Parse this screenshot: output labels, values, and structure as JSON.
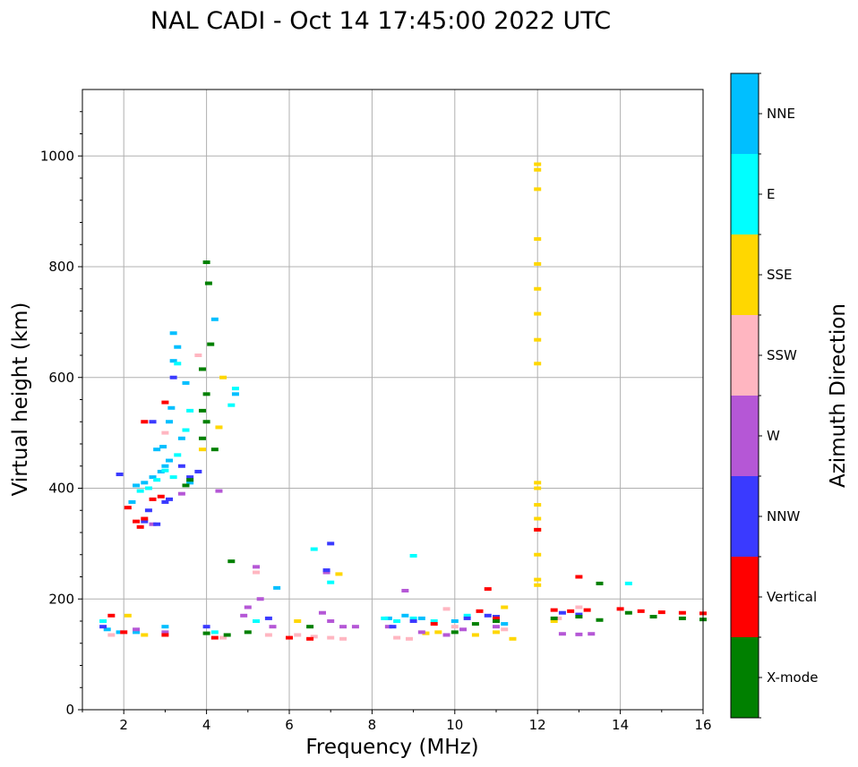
{
  "chart_data": {
    "type": "scatter",
    "title": "NAL CADI - Oct 14 17:45:00 2022 UTC",
    "xlabel": "Frequency (MHz)",
    "ylabel": "Virtual height (km)",
    "xlim": [
      1,
      16
    ],
    "ylim": [
      0,
      1120
    ],
    "grid": true,
    "xticks": [
      2,
      4,
      6,
      8,
      10,
      12,
      14,
      16
    ],
    "yticks": [
      0,
      200,
      400,
      600,
      800,
      1000
    ],
    "colorbar": {
      "label": "Azimuth Direction",
      "categories": [
        {
          "name": "X-mode",
          "color": "#008000"
        },
        {
          "name": "Vertical",
          "color": "#ff0000"
        },
        {
          "name": "NNW",
          "color": "#3a3aff"
        },
        {
          "name": "W",
          "color": "#b557d6"
        },
        {
          "name": "SSW",
          "color": "#ffb6c1"
        },
        {
          "name": "SSE",
          "color": "#ffd700"
        },
        {
          "name": "E",
          "color": "#00ffff"
        },
        {
          "name": "NNE",
          "color": "#00bfff"
        }
      ]
    },
    "series": [
      {
        "name": "NNE",
        "points": [
          [
            2.3,
            405
          ],
          [
            2.5,
            410
          ],
          [
            2.7,
            420
          ],
          [
            2.9,
            430
          ],
          [
            3.0,
            440
          ],
          [
            3.1,
            450
          ],
          [
            2.95,
            475
          ],
          [
            3.1,
            520
          ],
          [
            3.15,
            545
          ],
          [
            3.2,
            680
          ],
          [
            3.3,
            655
          ],
          [
            3.2,
            630
          ],
          [
            2.8,
            470
          ],
          [
            3.4,
            490
          ],
          [
            2.2,
            375
          ],
          [
            3.6,
            410
          ],
          [
            1.6,
            145
          ],
          [
            1.9,
            140
          ],
          [
            2.3,
            140
          ],
          [
            3.0,
            150
          ],
          [
            8.4,
            165
          ],
          [
            8.8,
            170
          ],
          [
            9.2,
            165
          ],
          [
            10.0,
            160
          ],
          [
            11.2,
            155
          ],
          [
            4.2,
            705
          ],
          [
            4.7,
            570
          ],
          [
            3.5,
            590
          ],
          [
            5.7,
            220
          ]
        ]
      },
      {
        "name": "E",
        "points": [
          [
            2.4,
            395
          ],
          [
            2.6,
            400
          ],
          [
            2.8,
            415
          ],
          [
            3.0,
            432
          ],
          [
            3.2,
            420
          ],
          [
            3.3,
            460
          ],
          [
            3.5,
            505
          ],
          [
            3.6,
            540
          ],
          [
            4.6,
            550
          ],
          [
            3.3,
            625
          ],
          [
            4.7,
            580
          ],
          [
            6.6,
            290
          ],
          [
            8.3,
            165
          ],
          [
            8.6,
            160
          ],
          [
            9.0,
            165
          ],
          [
            9.5,
            160
          ],
          [
            10.3,
            170
          ],
          [
            9.0,
            278
          ],
          [
            14.2,
            228
          ],
          [
            7.0,
            230
          ],
          [
            5.2,
            160
          ],
          [
            1.5,
            160
          ],
          [
            4.2,
            140
          ]
        ]
      },
      {
        "name": "SSE",
        "points": [
          [
            12.0,
            985
          ],
          [
            12.0,
            975
          ],
          [
            12.0,
            940
          ],
          [
            12.0,
            850
          ],
          [
            12.0,
            805
          ],
          [
            12.0,
            760
          ],
          [
            12.0,
            715
          ],
          [
            12.0,
            668
          ],
          [
            12.0,
            625
          ],
          [
            12.0,
            410
          ],
          [
            12.0,
            400
          ],
          [
            12.0,
            370
          ],
          [
            12.0,
            345
          ],
          [
            12.0,
            325
          ],
          [
            12.0,
            280
          ],
          [
            12.0,
            235
          ],
          [
            12.0,
            225
          ],
          [
            9.3,
            138
          ],
          [
            9.6,
            140
          ],
          [
            11.4,
            128
          ],
          [
            11.0,
            140
          ],
          [
            10.5,
            135
          ],
          [
            11.2,
            185
          ],
          [
            7.2,
            245
          ],
          [
            4.4,
            600
          ],
          [
            3.9,
            470
          ],
          [
            2.1,
            170
          ],
          [
            2.5,
            135
          ],
          [
            6.2,
            160
          ],
          [
            12.4,
            160
          ],
          [
            4.3,
            510
          ]
        ]
      },
      {
        "name": "SSW",
        "points": [
          [
            8.9,
            128
          ],
          [
            8.6,
            130
          ],
          [
            7.3,
            128
          ],
          [
            7.0,
            130
          ],
          [
            6.6,
            132
          ],
          [
            6.2,
            135
          ],
          [
            5.5,
            135
          ],
          [
            5.2,
            248
          ],
          [
            3.8,
            640
          ],
          [
            3.0,
            500
          ],
          [
            4.4,
            130
          ],
          [
            2.0,
            140
          ],
          [
            1.7,
            135
          ],
          [
            10.0,
            150
          ],
          [
            13.0,
            185
          ],
          [
            12.5,
            165
          ],
          [
            11.2,
            145
          ],
          [
            9.8,
            182
          ]
        ]
      },
      {
        "name": "W",
        "points": [
          [
            12.6,
            137
          ],
          [
            13.0,
            136
          ],
          [
            13.3,
            137
          ],
          [
            8.8,
            215
          ],
          [
            5.2,
            258
          ],
          [
            5.3,
            200
          ],
          [
            5.0,
            185
          ],
          [
            4.9,
            170
          ],
          [
            6.8,
            175
          ],
          [
            7.0,
            160
          ],
          [
            7.3,
            150
          ],
          [
            7.6,
            150
          ],
          [
            8.4,
            150
          ],
          [
            9.2,
            140
          ],
          [
            9.8,
            135
          ],
          [
            10.2,
            145
          ],
          [
            11.0,
            150
          ],
          [
            2.7,
            335
          ],
          [
            3.4,
            390
          ],
          [
            4.3,
            395
          ],
          [
            6.9,
            248
          ],
          [
            5.6,
            150
          ],
          [
            3.0,
            140
          ],
          [
            2.3,
            145
          ]
        ]
      },
      {
        "name": "NNW",
        "points": [
          [
            2.6,
            360
          ],
          [
            2.8,
            335
          ],
          [
            2.5,
            340
          ],
          [
            3.0,
            375
          ],
          [
            3.1,
            380
          ],
          [
            3.4,
            440
          ],
          [
            3.8,
            430
          ],
          [
            3.6,
            420
          ],
          [
            7.0,
            300
          ],
          [
            6.9,
            252
          ],
          [
            10.8,
            170
          ],
          [
            11.0,
            168
          ],
          [
            12.6,
            175
          ],
          [
            13.0,
            172
          ],
          [
            10.3,
            165
          ],
          [
            9.0,
            160
          ],
          [
            8.5,
            150
          ],
          [
            2.7,
            520
          ],
          [
            3.2,
            600
          ],
          [
            1.9,
            425
          ],
          [
            1.5,
            150
          ],
          [
            4.0,
            150
          ],
          [
            5.5,
            165
          ]
        ]
      },
      {
        "name": "Vertical",
        "points": [
          [
            2.3,
            340
          ],
          [
            2.4,
            330
          ],
          [
            2.5,
            345
          ],
          [
            2.1,
            365
          ],
          [
            2.7,
            380
          ],
          [
            2.9,
            385
          ],
          [
            3.0,
            555
          ],
          [
            2.5,
            520
          ],
          [
            10.8,
            218
          ],
          [
            12.0,
            325
          ],
          [
            13.0,
            240
          ],
          [
            12.4,
            180
          ],
          [
            12.8,
            178
          ],
          [
            13.2,
            180
          ],
          [
            14.0,
            182
          ],
          [
            14.5,
            178
          ],
          [
            15.0,
            176
          ],
          [
            15.5,
            175
          ],
          [
            16.0,
            174
          ],
          [
            10.6,
            178
          ],
          [
            11.0,
            165
          ],
          [
            9.5,
            155
          ],
          [
            6.5,
            128
          ],
          [
            6.0,
            130
          ],
          [
            4.2,
            130
          ],
          [
            3.0,
            135
          ],
          [
            2.0,
            140
          ],
          [
            1.7,
            170
          ]
        ]
      },
      {
        "name": "X-mode",
        "points": [
          [
            4.0,
            808
          ],
          [
            4.05,
            770
          ],
          [
            4.1,
            660
          ],
          [
            3.9,
            615
          ],
          [
            4.0,
            570
          ],
          [
            3.9,
            540
          ],
          [
            4.0,
            520
          ],
          [
            3.9,
            490
          ],
          [
            4.2,
            470
          ],
          [
            3.6,
            415
          ],
          [
            3.5,
            405
          ],
          [
            4.6,
            268
          ],
          [
            13.5,
            228
          ],
          [
            12.4,
            165
          ],
          [
            13.0,
            168
          ],
          [
            13.5,
            162
          ],
          [
            14.2,
            175
          ],
          [
            14.8,
            168
          ],
          [
            15.5,
            165
          ],
          [
            16.0,
            163
          ],
          [
            11.0,
            160
          ],
          [
            10.5,
            155
          ],
          [
            10.0,
            140
          ],
          [
            6.5,
            150
          ],
          [
            5.0,
            140
          ],
          [
            4.0,
            138
          ],
          [
            4.5,
            135
          ]
        ]
      }
    ]
  }
}
